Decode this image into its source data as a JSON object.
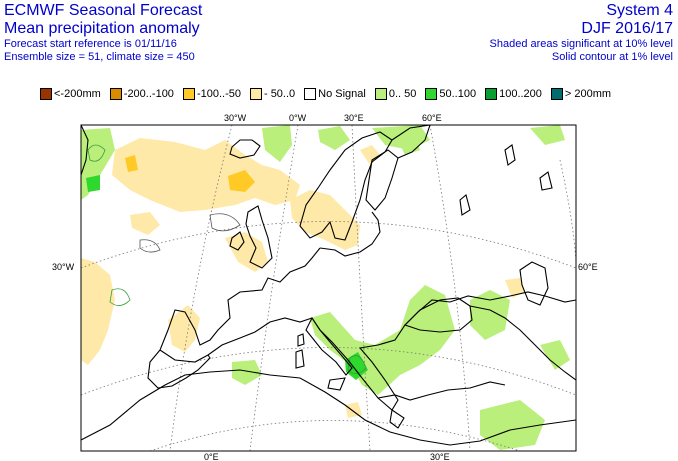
{
  "header": {
    "title": "ECMWF Seasonal Forecast",
    "subtitle": "Mean precipitation anomaly",
    "start_ref": "Forecast start reference is 01/11/16",
    "ensemble": "Ensemble size = 51, climate size = 450",
    "system": "System 4",
    "season": "DJF 2016/17",
    "note_shaded": "Shaded areas significant at 10% level",
    "note_contour": "Solid contour at 1% level"
  },
  "legend": [
    {
      "label": "<-200mm",
      "color": "#9a3300"
    },
    {
      "label": "-200..-100",
      "color": "#d98a00"
    },
    {
      "label": "-100..-50",
      "color": "#ffc926"
    },
    {
      "label": "- 50..0",
      "color": "#ffe9a8"
    },
    {
      "label": "No Signal",
      "color": "#ffffff"
    },
    {
      "label": "0.. 50",
      "color": "#b9ef7a"
    },
    {
      "label": "50..100",
      "color": "#2ed82e"
    },
    {
      "label": "100..200",
      "color": "#07a030"
    },
    {
      "label": "> 200mm",
      "color": "#006e6e"
    }
  ],
  "map_labels": {
    "lon_30w": "30°W",
    "lon_0": "0°W",
    "lon_30e": "30°E",
    "lon_60e": "60°E",
    "lat_left": "30°W",
    "lat_right": "60°E",
    "bottom_0": "0°E",
    "bottom_30e": "30°E"
  }
}
